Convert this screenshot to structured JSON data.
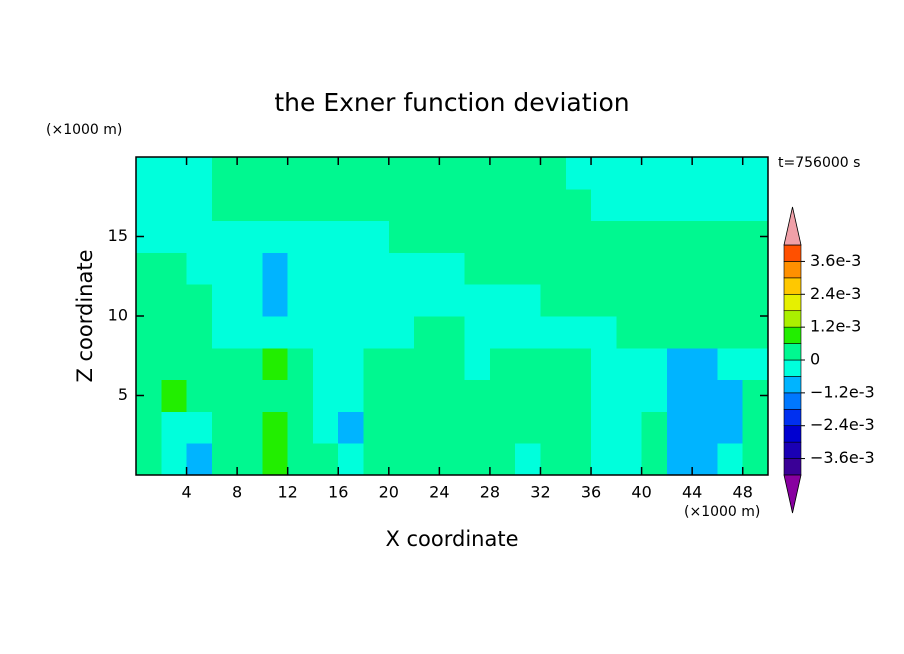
{
  "chart_data": {
    "type": "contour",
    "title": "the Exner function deviation",
    "x_label": "X coordinate",
    "y_label": "Z coordinate",
    "x_unit": "(×1000 m)",
    "y_unit": "(×1000 m)",
    "annotation": "t=756000 s",
    "xlim": [
      0,
      50
    ],
    "ylim": [
      0,
      20
    ],
    "xticks": [
      4,
      8,
      12,
      16,
      20,
      24,
      28,
      32,
      36,
      40,
      44,
      48
    ],
    "yticks": [
      5,
      10,
      15
    ],
    "x": [
      1,
      3,
      5,
      7,
      9,
      11,
      13,
      15,
      17,
      19,
      21,
      23,
      25,
      27,
      29,
      31,
      33,
      35,
      37,
      39,
      41,
      43,
      45,
      47,
      49
    ],
    "y": [
      1,
      3,
      5,
      7,
      9,
      11,
      13,
      15,
      17,
      19
    ],
    "values": [
      [
        0.0003,
        -0.0003,
        -0.0009,
        0.0003,
        0.0003,
        0.0009,
        0.0003,
        0.0003,
        -0.0003,
        0.0003,
        0.0003,
        0.0003,
        0.0003,
        0.0003,
        0.0003,
        -0.0003,
        0.0003,
        0.0003,
        -0.0003,
        -0.0003,
        0.0003,
        -0.0009,
        -0.0009,
        -0.0003,
        0.0003
      ],
      [
        0.0003,
        -0.0003,
        -0.0003,
        0.0003,
        0.0003,
        0.0009,
        0.0003,
        -0.0003,
        -0.0009,
        0.0003,
        0.0003,
        0.0003,
        0.0003,
        0.0003,
        0.0003,
        0.0003,
        0.0003,
        0.0003,
        -0.0003,
        -0.0003,
        0.0003,
        -0.0009,
        -0.0009,
        -0.0009,
        0.0003
      ],
      [
        0.0003,
        0.0009,
        0.0003,
        0.0003,
        0.0003,
        0.0003,
        0.0003,
        -0.0003,
        -0.0003,
        0.0003,
        0.0003,
        0.0003,
        0.0003,
        0.0003,
        0.0003,
        0.0003,
        0.0003,
        0.0003,
        -0.0003,
        -0.0003,
        -0.0003,
        -0.0009,
        -0.0009,
        -0.0009,
        0.0003
      ],
      [
        0.0003,
        0.0003,
        0.0003,
        0.0003,
        0.0003,
        0.0009,
        0.0003,
        -0.0003,
        -0.0003,
        0.0003,
        0.0003,
        0.0003,
        0.0003,
        -0.0003,
        0.0003,
        0.0003,
        0.0003,
        0.0003,
        -0.0003,
        -0.0003,
        -0.0003,
        -0.0009,
        -0.0009,
        -0.0003,
        -0.0003
      ],
      [
        0.0003,
        0.0003,
        0.0003,
        -0.0003,
        -0.0003,
        -0.0003,
        -0.0003,
        -0.0003,
        -0.0003,
        -0.0003,
        -0.0003,
        0.0003,
        0.0003,
        -0.0003,
        -0.0003,
        -0.0003,
        -0.0003,
        -0.0003,
        -0.0003,
        0.0003,
        0.0003,
        0.0003,
        0.0003,
        0.0003,
        0.0003
      ],
      [
        0.0003,
        0.0003,
        0.0003,
        -0.0003,
        -0.0003,
        -0.0009,
        -0.0003,
        -0.0003,
        -0.0003,
        -0.0003,
        -0.0003,
        -0.0003,
        -0.0003,
        -0.0003,
        -0.0003,
        -0.0003,
        0.0003,
        0.0003,
        0.0003,
        0.0003,
        0.0003,
        0.0003,
        0.0003,
        0.0003,
        0.0003
      ],
      [
        0.0003,
        0.0003,
        -0.0003,
        -0.0003,
        -0.0003,
        -0.0009,
        -0.0003,
        -0.0003,
        -0.0003,
        -0.0003,
        -0.0003,
        -0.0003,
        -0.0003,
        0.0003,
        0.0003,
        0.0003,
        0.0003,
        0.0003,
        0.0003,
        0.0003,
        0.0003,
        0.0003,
        0.0003,
        0.0003,
        0.0003
      ],
      [
        -0.0003,
        -0.0003,
        -0.0003,
        -0.0003,
        -0.0003,
        -0.0003,
        -0.0003,
        -0.0003,
        -0.0003,
        -0.0003,
        0.0003,
        0.0003,
        0.0003,
        0.0003,
        0.0003,
        0.0003,
        0.0003,
        0.0003,
        0.0003,
        0.0003,
        0.0003,
        0.0003,
        0.0003,
        0.0003,
        0.0003
      ],
      [
        -0.0003,
        -0.0003,
        -0.0003,
        0.0003,
        0.0003,
        0.0003,
        0.0003,
        0.0003,
        0.0003,
        0.0003,
        0.0003,
        0.0003,
        0.0003,
        0.0003,
        0.0003,
        0.0003,
        0.0003,
        0.0003,
        -0.0003,
        -0.0003,
        -0.0003,
        -0.0003,
        -0.0003,
        -0.0003,
        -0.0003
      ],
      [
        -0.0003,
        -0.0003,
        -0.0003,
        0.0003,
        0.0003,
        0.0003,
        0.0003,
        0.0003,
        0.0003,
        0.0003,
        0.0003,
        0.0003,
        0.0003,
        0.0003,
        0.0003,
        0.0003,
        0.0003,
        -0.0003,
        -0.0003,
        -0.0003,
        -0.0003,
        -0.0003,
        -0.0003,
        -0.0003,
        -0.0003
      ]
    ],
    "levels": [
      -0.0042,
      -0.0036,
      -0.003,
      -0.0024,
      -0.0018,
      -0.0012,
      -0.0006,
      0,
      0.0006,
      0.0012,
      0.0018,
      0.0024,
      0.003,
      0.0036,
      0.0042
    ],
    "colors": [
      "#3a0096",
      "#1a00b4",
      "#0000d0",
      "#0030f0",
      "#0078ff",
      "#00b4ff",
      "#00ffdc",
      "#00f890",
      "#22ee00",
      "#aaf000",
      "#e6f000",
      "#ffc800",
      "#ff9000",
      "#ff5000"
    ],
    "extend_colors": [
      "#8800a0",
      "#f0a0a8"
    ],
    "colorbar_ticks": [
      {
        "value": 0.0036,
        "label": "3.6e-3"
      },
      {
        "value": 0.0024,
        "label": "2.4e-3"
      },
      {
        "value": 0.0012,
        "label": "1.2e-3"
      },
      0,
      {
        "value": -0.0012,
        "label": "−1.2e-3"
      },
      {
        "value": -0.0024,
        "label": "−2.4e-3"
      },
      {
        "value": -0.0036,
        "label": "−3.6e-3"
      }
    ]
  }
}
